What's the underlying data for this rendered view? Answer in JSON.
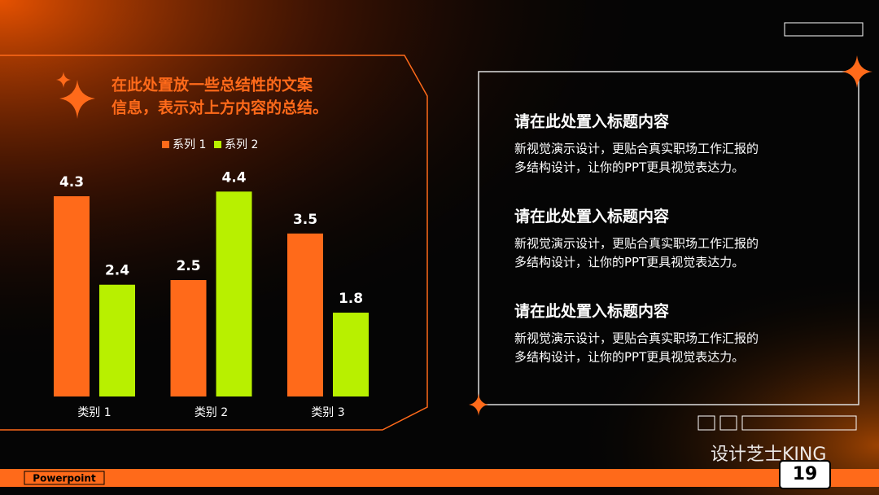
{
  "chart_data": {
    "type": "bar",
    "title": [
      "在此处置放一些总结性的文案",
      "信息，表示对上方内容的总结。"
    ],
    "categories": [
      "类别 1",
      "类别 2",
      "类别 3"
    ],
    "series": [
      {
        "name": "系列 1",
        "color": "#ff6a1a",
        "values": [
          4.3,
          2.5,
          3.5
        ]
      },
      {
        "name": "系列 2",
        "color": "#b8f000",
        "values": [
          2.4,
          4.4,
          1.8
        ]
      }
    ]
  },
  "sections": [
    {
      "title": "请在此处置入标题内容",
      "body": [
        "新视觉演示设计，更贴合真实职场工作汇报的",
        "多结构设计，让你的PPT更具视觉表达力。"
      ]
    },
    {
      "title": "请在此处置入标题内容",
      "body": [
        "新视觉演示设计，更贴合真实职场工作汇报的",
        "多结构设计，让你的PPT更具视觉表达力。"
      ]
    },
    {
      "title": "请在此处置入标题内容",
      "body": [
        "新视觉演示设计，更贴合真实职场工作汇报的",
        "多结构设计，让你的PPT更具视觉表达力。"
      ]
    }
  ],
  "footer": {
    "brand": "Powerpoint",
    "page": "19"
  },
  "watermark": "设计芝士KING"
}
